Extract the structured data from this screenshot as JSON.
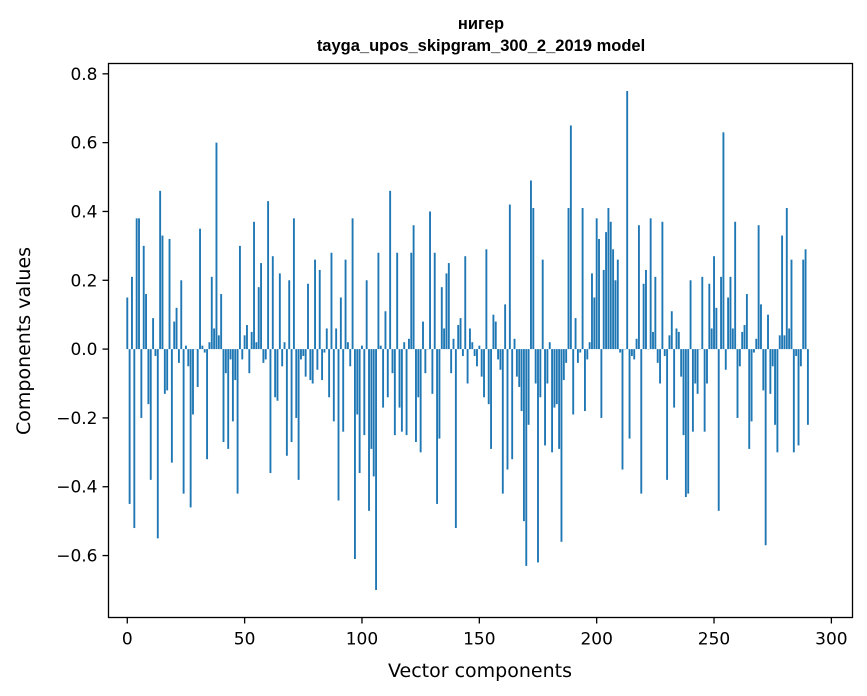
{
  "chart_data": {
    "type": "bar",
    "title_line1": "нигер",
    "title_line2": "tayga_upos_skipgram_300_2_2019 model",
    "xlabel": "Vector components",
    "ylabel": "Components values",
    "xlim": [
      -8,
      309
    ],
    "ylim": [
      -0.78,
      0.83
    ],
    "xticks": [
      0,
      50,
      100,
      150,
      200,
      250,
      300
    ],
    "xtick_labels": [
      "0",
      "50",
      "100",
      "150",
      "200",
      "250",
      "300"
    ],
    "yticks": [
      -0.6,
      -0.4,
      -0.2,
      0.0,
      0.2,
      0.4,
      0.6,
      0.8
    ],
    "ytick_labels": [
      "−0.6",
      "−0.4",
      "−0.2",
      "0.0",
      "0.2",
      "0.4",
      "0.6",
      "0.8"
    ],
    "bar_color": "#1f77b4",
    "grid": false,
    "values": [
      0.15,
      -0.45,
      0.21,
      -0.52,
      0.38,
      0.38,
      -0.2,
      0.3,
      0.16,
      -0.16,
      -0.38,
      0.09,
      -0.02,
      -0.55,
      0.46,
      0.33,
      -0.13,
      -0.12,
      0.32,
      -0.33,
      0.08,
      0.12,
      -0.04,
      0.2,
      -0.42,
      0.01,
      -0.05,
      -0.46,
      -0.19,
      0.0,
      -0.11,
      0.35,
      0.01,
      -0.01,
      -0.32,
      0.02,
      0.21,
      0.06,
      0.6,
      0.04,
      0.16,
      -0.27,
      -0.07,
      -0.29,
      -0.03,
      -0.21,
      -0.09,
      -0.42,
      0.3,
      -0.03,
      0.04,
      0.07,
      -0.07,
      0.05,
      0.37,
      0.02,
      0.18,
      0.25,
      -0.04,
      -0.03,
      0.43,
      -0.36,
      0.27,
      -0.14,
      -0.15,
      0.22,
      -0.05,
      0.02,
      -0.31,
      0.2,
      -0.27,
      0.38,
      -0.2,
      -0.38,
      -0.03,
      -0.02,
      -0.08,
      0.19,
      -0.09,
      -0.1,
      0.26,
      -0.06,
      0.23,
      -0.09,
      -0.01,
      0.06,
      -0.14,
      0.28,
      -0.21,
      0.06,
      -0.44,
      0.15,
      -0.24,
      0.26,
      0.02,
      -0.05,
      0.38,
      -0.61,
      -0.19,
      -0.36,
      0.01,
      -0.25,
      0.2,
      -0.47,
      -0.29,
      -0.37,
      -0.7,
      0.28,
      0.01,
      -0.17,
      0.11,
      -0.14,
      0.46,
      -0.07,
      -0.25,
      0.28,
      -0.17,
      -0.24,
      0.02,
      -0.25,
      0.03,
      0.28,
      0.36,
      -0.27,
      -0.14,
      -0.3,
      0.08,
      -0.07,
      0.0,
      0.4,
      -0.13,
      0.28,
      -0.45,
      -0.26,
      0.18,
      0.06,
      0.22,
      0.25,
      -0.07,
      0.03,
      -0.52,
      0.07,
      0.09,
      -0.02,
      0.27,
      -0.1,
      0.06,
      0.02,
      -0.02,
      -0.05,
      0.01,
      -0.08,
      -0.14,
      0.29,
      -0.16,
      -0.29,
      0.1,
      0.08,
      -0.03,
      -0.06,
      -0.42,
      0.13,
      -0.35,
      0.42,
      -0.32,
      0.03,
      -0.08,
      -0.11,
      -0.18,
      -0.5,
      -0.63,
      -0.22,
      0.49,
      0.41,
      -0.1,
      -0.62,
      -0.14,
      0.26,
      -0.28,
      -0.1,
      0.02,
      -0.3,
      -0.17,
      -0.16,
      -0.29,
      -0.56,
      -0.09,
      -0.04,
      0.41,
      0.65,
      -0.19,
      0.09,
      -0.04,
      -0.01,
      0.41,
      -0.18,
      -0.03,
      0.02,
      0.22,
      0.15,
      0.38,
      0.32,
      -0.2,
      0.23,
      0.34,
      0.41,
      0.37,
      0.29,
      0.2,
      0.26,
      -0.01,
      -0.35,
      0.0,
      0.75,
      -0.26,
      -0.02,
      -0.03,
      0.03,
      0.36,
      -0.42,
      0.19,
      0.23,
      0.0,
      0.38,
      0.05,
      0.21,
      -0.04,
      -0.1,
      0.37,
      -0.02,
      -0.38,
      0.04,
      0.11,
      -0.17,
      0.06,
      0.05,
      -0.08,
      -0.25,
      -0.43,
      -0.42,
      0.2,
      -0.24,
      -0.1,
      -0.13,
      0.0,
      0.21,
      -0.24,
      -0.1,
      0.19,
      0.06,
      0.27,
      0.12,
      -0.47,
      0.21,
      0.63,
      -0.06,
      0.15,
      0.21,
      0.06,
      0.37,
      -0.2,
      -0.05,
      0.05,
      0.07,
      0.16,
      -0.29,
      -0.21,
      -0.01,
      0.03,
      0.36,
      0.13,
      -0.12,
      -0.57,
      0.1,
      -0.13,
      -0.05,
      -0.22,
      -0.3,
      0.04,
      0.33,
      0.04,
      0.41,
      0.06,
      0.26,
      -0.3,
      -0.02,
      -0.28,
      -0.05,
      0.26,
      0.29,
      -0.22
    ]
  }
}
